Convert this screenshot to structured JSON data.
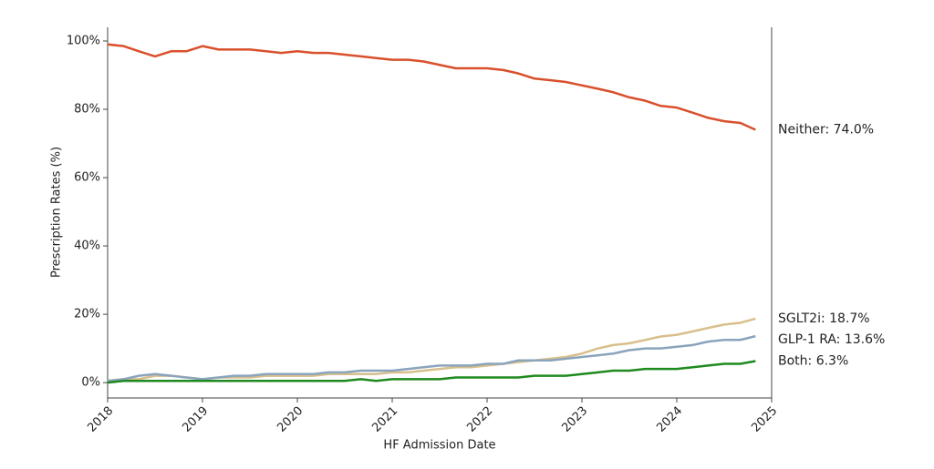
{
  "chart_data": {
    "type": "line",
    "xlabel": "HF Admission Date",
    "ylabel": "Prescription Rates (%)",
    "x": [
      2018,
      2018.17,
      2018.33,
      2018.5,
      2018.67,
      2018.83,
      2019,
      2019.17,
      2019.33,
      2019.5,
      2019.67,
      2019.83,
      2020,
      2020.17,
      2020.33,
      2020.5,
      2020.67,
      2020.83,
      2021,
      2021.17,
      2021.33,
      2021.5,
      2021.67,
      2021.83,
      2022,
      2022.17,
      2022.33,
      2022.5,
      2022.67,
      2022.83,
      2023,
      2023.17,
      2023.33,
      2023.5,
      2023.67,
      2023.83,
      2024,
      2024.17,
      2024.33,
      2024.5,
      2024.67,
      2024.83
    ],
    "xlim": [
      2018,
      2025
    ],
    "xticks": [
      2018,
      2019,
      2020,
      2021,
      2022,
      2023,
      2024,
      2025
    ],
    "ylim": [
      -4.5,
      104
    ],
    "yticks": [
      {
        "value": 0,
        "label": "0%"
      },
      {
        "value": 20,
        "label": "20%"
      },
      {
        "value": 40,
        "label": "40%"
      },
      {
        "value": 60,
        "label": "60%"
      },
      {
        "value": 80,
        "label": "80%"
      },
      {
        "value": 100,
        "label": "100%"
      }
    ],
    "series": [
      {
        "name": "Neither",
        "label": "Neither: 74.0%",
        "color": "#d9502c",
        "values": [
          99,
          98.5,
          97,
          95.5,
          97,
          97,
          98.5,
          97.5,
          97.5,
          97.5,
          97,
          96.5,
          97,
          96.5,
          96.5,
          96,
          95.5,
          95,
          94.5,
          94.5,
          94,
          93,
          92,
          92,
          92,
          91.5,
          90.5,
          89,
          88.5,
          88,
          87,
          86,
          85,
          83.5,
          82.5,
          81,
          80.5,
          79,
          77.5,
          76.5,
          76,
          74
        ]
      },
      {
        "name": "SGLT2i",
        "label": "SGLT2i: 18.7%",
        "color": "#d8bf8d",
        "values": [
          0.5,
          1,
          1,
          2,
          2,
          1.5,
          1,
          1.5,
          1.5,
          1.5,
          2,
          2,
          2,
          2,
          2.5,
          2.5,
          2.5,
          2.5,
          3,
          3,
          3.5,
          4,
          4.5,
          4.5,
          5,
          5.5,
          6,
          6.5,
          7,
          7.5,
          8.5,
          10,
          11,
          11.5,
          12.5,
          13.5,
          14,
          15,
          16,
          17,
          17.5,
          18.7
        ]
      },
      {
        "name": "GLP-1 RA",
        "label": "GLP-1 RA: 13.6%",
        "color": "#8aa4bd",
        "values": [
          0.5,
          1,
          2,
          2.5,
          2,
          1.5,
          1,
          1.5,
          2,
          2,
          2.5,
          2.5,
          2.5,
          2.5,
          3,
          3,
          3.5,
          3.5,
          3.5,
          4,
          4.5,
          5,
          5,
          5,
          5.5,
          5.5,
          6.5,
          6.5,
          6.5,
          7,
          7.5,
          8,
          8.5,
          9.5,
          10,
          10,
          10.5,
          11,
          12,
          12.5,
          12.5,
          13.6
        ]
      },
      {
        "name": "Both",
        "label": "Both: 6.3%",
        "color": "#1e8a1e",
        "values": [
          0,
          0.5,
          0.5,
          0.5,
          0.5,
          0.5,
          0.5,
          0.5,
          0.5,
          0.5,
          0.5,
          0.5,
          0.5,
          0.5,
          0.5,
          0.5,
          1,
          0.5,
          1,
          1,
          1,
          1,
          1.5,
          1.5,
          1.5,
          1.5,
          1.5,
          2,
          2,
          2,
          2.5,
          3,
          3.5,
          3.5,
          4,
          4,
          4,
          4.5,
          5,
          5.5,
          5.5,
          6.3
        ]
      }
    ]
  }
}
